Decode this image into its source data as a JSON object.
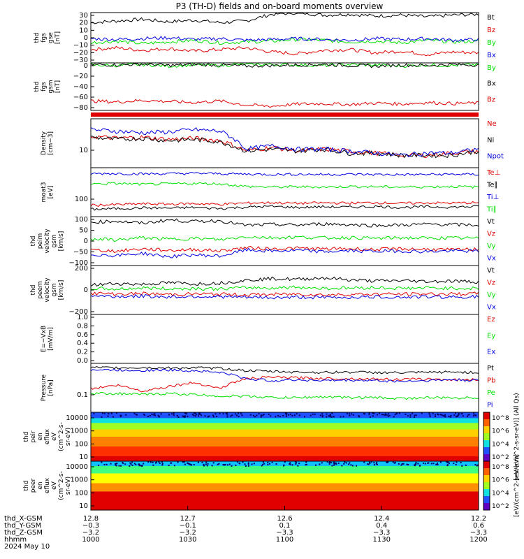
{
  "title": "P3 (TH-D) fields and on-board moments overview",
  "colors": {
    "black": "#000000",
    "red": "#e00000",
    "green": "#00e000",
    "blue": "#0000e0"
  },
  "chart_data": [
    {
      "type": "line",
      "ylabel": [
        "thd",
        "fgs",
        "gse",
        "[nT]"
      ],
      "yticks": [
        "30",
        "20",
        "10",
        "0",
        "−10",
        "−20",
        "−30"
      ],
      "ylim": [
        -30,
        30
      ],
      "series": [
        {
          "name": "Bt",
          "color": "black",
          "values": [
            18,
            20,
            22,
            19,
            21,
            18,
            20,
            28,
            30,
            27,
            28,
            26,
            27,
            25,
            27,
            28
          ]
        },
        {
          "name": "Bz",
          "color": "red",
          "values": [
            -14,
            -12,
            -15,
            -13,
            -16,
            -14,
            -12,
            -17,
            -19,
            -15,
            -14,
            -18,
            -16,
            -20,
            -17,
            -18
          ]
        },
        {
          "name": "By",
          "color": "green",
          "values": [
            -6,
            -4,
            -7,
            -5,
            -3,
            -6,
            -5,
            -4,
            -2,
            -3,
            -5,
            -4,
            -6,
            -3,
            -5,
            -4
          ]
        },
        {
          "name": "Bx",
          "color": "blue",
          "values": [
            -1,
            -2,
            -1,
            0,
            -2,
            -1,
            -3,
            -2,
            -1,
            -2,
            -3,
            -1,
            -2,
            -1,
            -3,
            -2
          ]
        }
      ]
    },
    {
      "type": "line",
      "ylabel": [
        "thd",
        "fgs",
        "gsm",
        "[nT]"
      ],
      "yticks": [
        "0",
        "−20",
        "−40",
        "−60",
        "−80"
      ],
      "ylim": [
        -90,
        0
      ],
      "series": [
        {
          "name": "By",
          "color": "green",
          "values": [
            -4,
            -5,
            -3,
            -6,
            -4,
            -5,
            -2,
            -3,
            -4,
            -5,
            -3,
            -4,
            -6,
            -4,
            -5,
            -3
          ]
        },
        {
          "name": "Bx",
          "color": "black",
          "values": [
            -3,
            -4,
            -2,
            -5,
            -3,
            -4,
            -6,
            -5,
            -4,
            -3,
            -5,
            -6,
            -4,
            -5,
            -3,
            -4
          ]
        },
        {
          "name": "Bz",
          "color": "red",
          "values": [
            -72,
            -74,
            -71,
            -73,
            -75,
            -72,
            -80,
            -82,
            -78,
            -77,
            -79,
            -76,
            -78,
            -75,
            -77,
            -76
          ]
        }
      ]
    },
    {
      "type": "line",
      "ylabel": [
        "Density",
        "[cm−3]"
      ],
      "yticks": [
        "10"
      ],
      "log": true,
      "ylim": [
        5,
        50
      ],
      "series": [
        {
          "name": "Ne",
          "color": "red",
          "values": [
            22,
            20,
            21,
            19,
            20,
            18,
            11,
            13,
            11,
            12,
            11,
            10,
            9,
            9,
            10,
            11
          ]
        },
        {
          "name": "Ni",
          "color": "black",
          "values": [
            21,
            19,
            20,
            18,
            19,
            17,
            11,
            12,
            11,
            12,
            10,
            10,
            9,
            9,
            9,
            11
          ]
        },
        {
          "name": "Npot",
          "color": "blue",
          "values": [
            30,
            28,
            26,
            27,
            30,
            28,
            12,
            14,
            12,
            12,
            11,
            10,
            9,
            10,
            10,
            12
          ]
        }
      ]
    },
    {
      "type": "line",
      "ylabel": [
        "moat3",
        "[eV]"
      ],
      "yticks": [
        "100"
      ],
      "log": true,
      "ylim": [
        15,
        1000
      ],
      "series": [
        {
          "name": "Te⊥",
          "color": "red",
          "values": [
            40,
            42,
            45,
            44,
            46,
            43,
            48,
            50,
            47,
            49,
            48,
            50,
            47,
            49,
            48,
            50
          ]
        },
        {
          "name": "Te∥",
          "color": "black",
          "values": [
            28,
            30,
            32,
            31,
            33,
            30,
            34,
            36,
            33,
            35,
            34,
            36,
            33,
            35,
            34,
            36
          ]
        },
        {
          "name": "Ti⊥",
          "color": "blue",
          "values": [
            600,
            610,
            590,
            600,
            620,
            600,
            580,
            560,
            570,
            560,
            570,
            560,
            550,
            560,
            570,
            560
          ]
        },
        {
          "name": "Ti∥",
          "color": "green",
          "values": [
            250,
            260,
            240,
            250,
            260,
            250,
            200,
            190,
            195,
            190,
            200,
            195,
            190,
            195,
            200,
            190
          ]
        }
      ]
    },
    {
      "type": "line",
      "ylabel": [
        "thd",
        "peim",
        "velocity",
        "gsm",
        "[km/s]"
      ],
      "yticks": [
        "100",
        "50",
        "0",
        "−50",
        "−100"
      ],
      "ylim": [
        -110,
        110
      ],
      "series": [
        {
          "name": "Vt",
          "color": "black",
          "values": [
            85,
            90,
            80,
            95,
            88,
            92,
            70,
            75,
            72,
            78,
            74,
            70,
            72,
            76,
            74,
            72
          ]
        },
        {
          "name": "Vz",
          "color": "red",
          "values": [
            -40,
            -45,
            -35,
            -42,
            -38,
            -44,
            -30,
            -35,
            -32,
            -36,
            -34,
            -38,
            -35,
            -37,
            -40,
            -36
          ]
        },
        {
          "name": "Vy",
          "color": "green",
          "values": [
            10,
            5,
            15,
            8,
            12,
            6,
            20,
            15,
            18,
            14,
            16,
            12,
            15,
            13,
            14,
            12
          ]
        },
        {
          "name": "Vx",
          "color": "blue",
          "values": [
            -60,
            -65,
            -55,
            -70,
            -62,
            -68,
            -40,
            -45,
            -42,
            -48,
            -44,
            -46,
            -45,
            -47,
            -44,
            -46
          ]
        }
      ]
    },
    {
      "type": "line",
      "ylabel": [
        "thd",
        "peem",
        "velocity",
        "gsm",
        "[km/s]"
      ],
      "yticks": [
        "200",
        "0",
        "−200"
      ],
      "ylim": [
        -300,
        300
      ],
      "series": [
        {
          "name": "Vt",
          "color": "black",
          "values": [
            60,
            80,
            70,
            90,
            75,
            85,
            120,
            140,
            130,
            150,
            125,
            110,
            115,
            105,
            110,
            100
          ]
        },
        {
          "name": "Vz",
          "color": "red",
          "values": [
            -40,
            -50,
            -45,
            -55,
            -48,
            -52,
            -60,
            -55,
            -50,
            -60,
            -55,
            -50,
            -52,
            -48,
            -50,
            -45
          ]
        },
        {
          "name": "Vy",
          "color": "green",
          "values": [
            20,
            10,
            25,
            15,
            20,
            12,
            30,
            25,
            35,
            20,
            25,
            30,
            20,
            25,
            22,
            18
          ]
        },
        {
          "name": "Vx",
          "color": "blue",
          "values": [
            -70,
            -80,
            -75,
            -85,
            -78,
            -82,
            -90,
            -95,
            -88,
            -92,
            -90,
            -85,
            -88,
            -84,
            -86,
            -82
          ]
        }
      ]
    },
    {
      "type": "line",
      "ylabel": [
        "E=−VxB",
        "[mV/m]"
      ],
      "yticks": [
        "1.0",
        "0.8",
        "0.6",
        "0.4",
        "0.2",
        "0.0"
      ],
      "ylim": [
        0,
        1
      ],
      "series": [
        {
          "name": "Ez",
          "color": "red",
          "values": []
        },
        {
          "name": "Ey",
          "color": "green",
          "values": []
        },
        {
          "name": "Ex",
          "color": "blue",
          "values": []
        }
      ]
    },
    {
      "type": "line",
      "ylabel": [
        "Pressure",
        "[nPa]"
      ],
      "yticks": [
        "0.1"
      ],
      "log": true,
      "ylim": [
        0.02,
        1.3
      ],
      "series": [
        {
          "name": "Pt",
          "color": "black",
          "values": [
            0.9,
            0.88,
            0.9,
            0.87,
            0.89,
            0.85,
            0.7,
            0.65,
            0.62,
            0.6,
            0.62,
            0.6,
            0.58,
            0.6,
            0.62,
            0.6
          ]
        },
        {
          "name": "Pb",
          "color": "red",
          "values": [
            0.15,
            0.2,
            0.12,
            0.18,
            0.25,
            0.15,
            0.35,
            0.4,
            0.38,
            0.36,
            0.35,
            0.34,
            0.33,
            0.34,
            0.32,
            0.33
          ]
        },
        {
          "name": "Pe",
          "color": "green",
          "values": [
            0.1,
            0.1,
            0.09,
            0.1,
            0.09,
            0.08,
            0.08,
            0.07,
            0.07,
            0.075,
            0.07,
            0.07,
            0.065,
            0.07,
            0.068,
            0.07
          ]
        },
        {
          "name": "Pi",
          "color": "blue",
          "values": [
            0.75,
            0.73,
            0.72,
            0.74,
            0.7,
            0.6,
            0.35,
            0.3,
            0.32,
            0.3,
            0.31,
            0.3,
            0.28,
            0.3,
            0.32,
            0.3
          ]
        }
      ]
    },
    {
      "type": "heatmap",
      "ylabel": [
        "thd",
        "peir",
        "en",
        "eflux",
        "eV",
        "(cm^2-s-",
        "sr-eV)"
      ],
      "yticks": [
        "10000",
        "1000",
        "100",
        "10"
      ],
      "log": true,
      "ylim": [
        5,
        25000
      ],
      "colorbar": {
        "ticks": [
          "10^8",
          "10^6",
          "10^4",
          "10^2"
        ],
        "label": "[eV/(cm^2-s-sr-eV)] (All Qs)"
      }
    },
    {
      "type": "heatmap",
      "ylabel": [
        "thd",
        "peer",
        "en",
        "eflux",
        "eV",
        "(cm^2-s-",
        "sr-eV)"
      ],
      "yticks": [
        "10000",
        "1000",
        "100",
        "10"
      ],
      "log": true,
      "ylim": [
        5,
        25000
      ],
      "colorbar": {
        "ticks": [
          "10^8",
          "10^6",
          "10^4",
          "10^2"
        ],
        "label": "[eV/(cm^2-s-sr-eV)]"
      }
    }
  ],
  "x_axis": {
    "xlim": [
      1000,
      1200
    ],
    "tick_positions": [
      1000,
      1030,
      1100,
      1130,
      1200
    ],
    "rows": [
      {
        "label": "thd_X-GSM",
        "values": [
          "12.8",
          "12.7",
          "12.6",
          "12.4",
          "12.2"
        ]
      },
      {
        "label": "thd_Y-GSM",
        "values": [
          "−0.3",
          "−0.1",
          "0.1",
          "0.4",
          "0.6"
        ]
      },
      {
        "label": "thd_Z-GSM",
        "values": [
          "−3.2",
          "−3.2",
          "−3.3",
          "−3.3",
          "−3.3"
        ]
      },
      {
        "label": "hhmm",
        "values": [
          "1000",
          "1030",
          "1100",
          "1130",
          "1200"
        ]
      }
    ],
    "date": "2024 May 10"
  }
}
